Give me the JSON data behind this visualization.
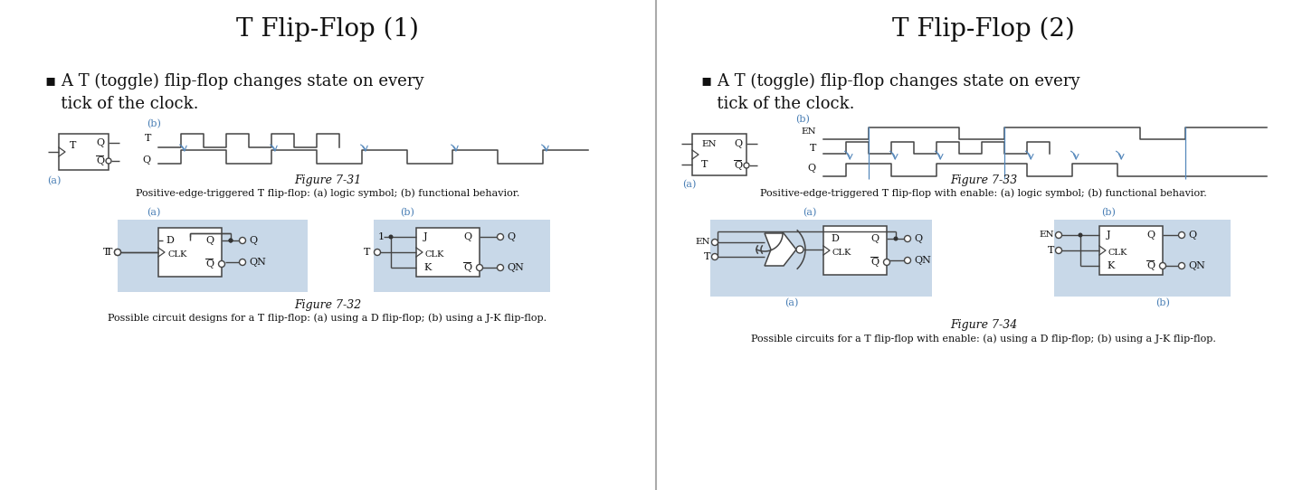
{
  "left_title": "T Flip-Flop (1)",
  "right_title": "T Flip-Flop (2)",
  "bullet_line1": "▪ A T (toggle) flip-flop changes state on every",
  "bullet_line2": "   tick of the clock.",
  "fig7_31_caption": "Figure 7-31",
  "fig7_31_sub": "Positive-edge-triggered T flip-flop: (a) logic symbol; (b) functional behavior.",
  "fig7_32_caption": "Figure 7-32",
  "fig7_32_sub": "Possible circuit designs for a T flip-flop: (a) using a D flip-flop; (b) using a J-K flip-flop.",
  "fig7_33_caption": "Figure 7-33",
  "fig7_33_sub": "Positive-edge-triggered T flip-flop with enable: (a) logic symbol; (b) functional behavior.",
  "fig7_34_caption": "Figure 7-34",
  "fig7_34_sub": "Possible circuits for a T flip-flop with enable: (a) using a D flip-flop; (b) using a J-K flip-flop.",
  "box_fill": "#c8d8e8",
  "label_color": "#4a7fb5",
  "blue_line": "#5588bb",
  "wire_color": "#444444",
  "text_color": "#111111",
  "title_fs": 20,
  "bullet_fs": 13,
  "caption_fs": 9,
  "sub_fs": 8
}
